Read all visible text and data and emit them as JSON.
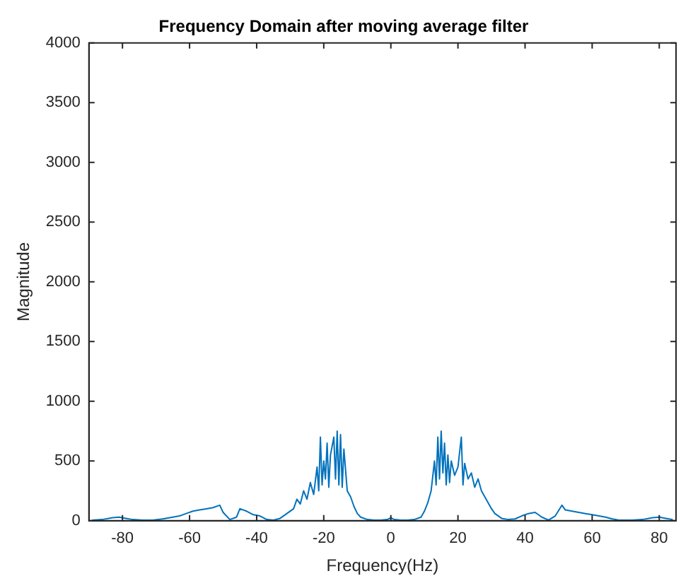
{
  "chart_data": {
    "type": "line",
    "title": "Frequency Domain after moving average filter",
    "xlabel": "Frequency(Hz)",
    "ylabel": "Magnitude",
    "xlim": [
      -90,
      85
    ],
    "xticks": [
      -80,
      -60,
      -40,
      -20,
      0,
      20,
      40,
      60,
      80
    ],
    "ylim": [
      0,
      4000
    ],
    "yticks": [
      0,
      500,
      1000,
      1500,
      2000,
      2500,
      3000,
      3500,
      4000
    ],
    "grid": false,
    "legend": false,
    "marker": "none",
    "line_style": "solid",
    "series": [
      {
        "color": "#0072bd",
        "x": [
          -89,
          -86,
          -83,
          -81,
          -79,
          -77,
          -74,
          -71,
          -68,
          -65,
          -63,
          -61,
          -59,
          -57,
          -55,
          -53,
          -51,
          -50,
          -48,
          -46,
          -45,
          -43,
          -41,
          -39,
          -37,
          -35,
          -33,
          -31,
          -29,
          -28,
          -27,
          -26,
          -25,
          -24,
          -23,
          -22,
          -21.5,
          -21,
          -20.5,
          -20,
          -19.5,
          -19,
          -18.5,
          -18,
          -17,
          -16.5,
          -16,
          -15.5,
          -15,
          -14.5,
          -14,
          -13,
          -12,
          -11,
          -10,
          -9,
          -7,
          -5,
          -3,
          -1,
          0,
          1,
          3,
          5,
          7,
          9,
          10,
          11,
          12,
          13,
          13.5,
          14,
          14.5,
          15,
          15.5,
          16,
          16.5,
          17,
          17.5,
          18,
          19,
          20,
          21,
          21.5,
          22,
          23,
          24,
          25,
          26,
          27,
          28,
          29,
          30,
          31,
          33,
          35,
          37,
          39,
          41,
          43,
          45,
          47,
          49,
          51,
          52,
          54,
          56,
          58,
          60,
          62,
          64,
          66,
          68,
          72,
          75,
          78,
          80,
          82,
          84
        ],
        "values": [
          5,
          10,
          25,
          30,
          20,
          10,
          5,
          5,
          15,
          30,
          40,
          60,
          80,
          90,
          100,
          110,
          130,
          70,
          10,
          30,
          100,
          80,
          50,
          40,
          10,
          5,
          20,
          60,
          100,
          180,
          140,
          250,
          180,
          320,
          220,
          450,
          250,
          700,
          300,
          500,
          350,
          650,
          280,
          550,
          700,
          350,
          750,
          300,
          720,
          280,
          600,
          250,
          200,
          120,
          60,
          30,
          10,
          5,
          5,
          10,
          25,
          10,
          5,
          5,
          10,
          30,
          80,
          150,
          250,
          500,
          300,
          700,
          350,
          750,
          400,
          650,
          300,
          550,
          320,
          500,
          380,
          450,
          700,
          300,
          480,
          350,
          400,
          280,
          350,
          250,
          200,
          150,
          100,
          60,
          20,
          10,
          15,
          40,
          60,
          70,
          30,
          5,
          40,
          130,
          90,
          80,
          70,
          60,
          50,
          40,
          30,
          15,
          5,
          5,
          10,
          25,
          30,
          20,
          10
        ]
      }
    ]
  }
}
